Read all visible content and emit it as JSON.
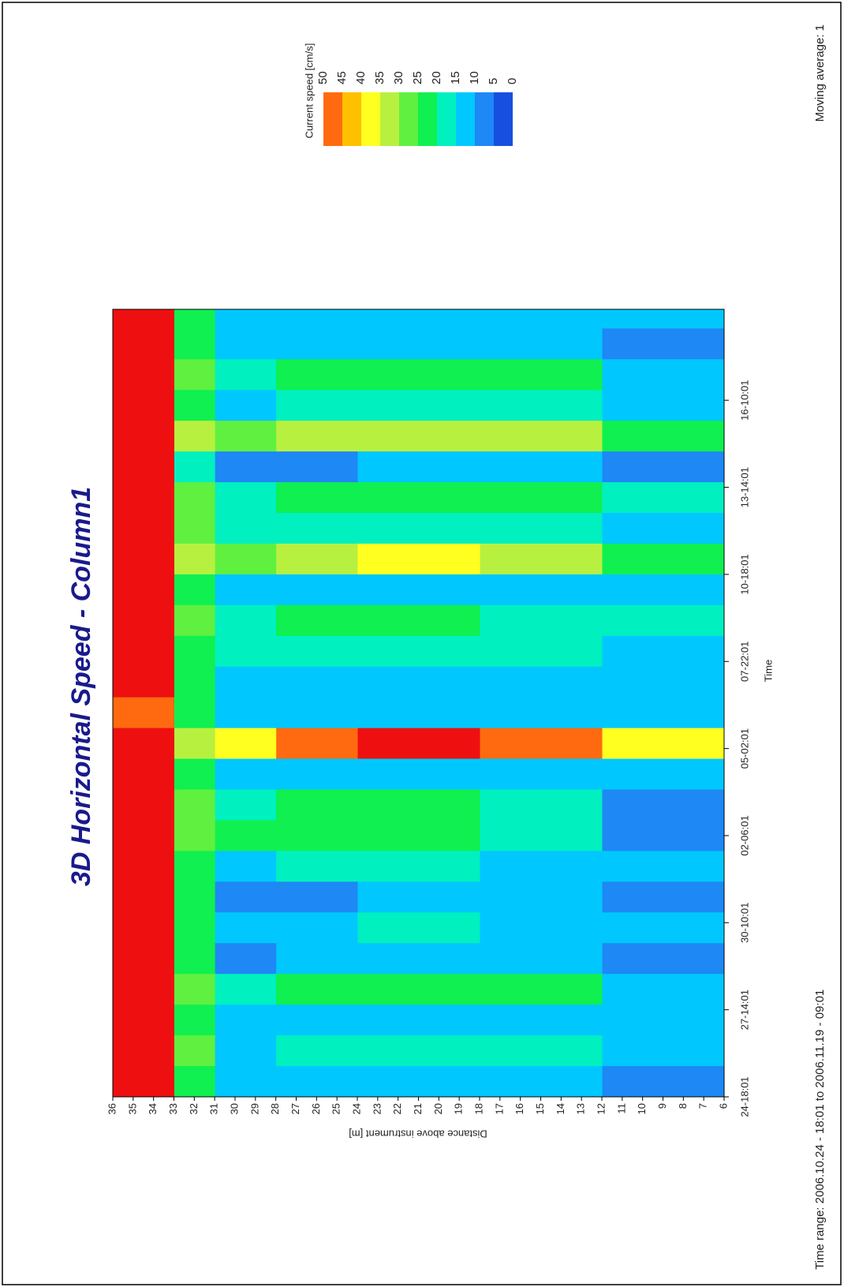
{
  "chart_data": {
    "type": "heatmap",
    "title": "3D Horizontal Speed - Column1",
    "xlabel": "Time",
    "ylabel": "Distance above instrument [m]",
    "footer_left": "Time range: 2006.10.24 - 18:01  to  2006.11.19 - 09:01",
    "footer_right": "Moving average: 1",
    "legend_title": "Current speed [cm/s]",
    "levels": [
      0,
      5,
      10,
      15,
      20,
      25,
      30,
      35,
      40,
      45,
      50
    ],
    "colors": [
      "#1750e0",
      "#1e88f5",
      "#00c8ff",
      "#00f0c0",
      "#10f050",
      "#60f040",
      "#b8f040",
      "#ffff20",
      "#ffc000",
      "#ff6a10"
    ],
    "over_color": "#ee1010",
    "title_color": "#1a1a8c",
    "x": [
      0,
      24,
      48,
      72,
      96,
      120,
      144,
      168,
      192,
      216,
      240,
      264,
      288,
      312,
      336,
      360,
      384,
      408,
      432,
      456,
      480,
      504,
      528,
      552,
      576,
      600,
      615
    ],
    "y": [
      6,
      12,
      18,
      24,
      28,
      31,
      33,
      36
    ],
    "z": [
      [
        8,
        14,
        10,
        14,
        8,
        10,
        8,
        12,
        7,
        9,
        10,
        35,
        12,
        10,
        14,
        16,
        10,
        20,
        12,
        16,
        8,
        20,
        12,
        14,
        8,
        12
      ],
      [
        12,
        17,
        12,
        20,
        11,
        14,
        10,
        14,
        18,
        16,
        12,
        45,
        14,
        12,
        18,
        18,
        12,
        30,
        16,
        20,
        10,
        30,
        16,
        20,
        10,
        14
      ],
      [
        12,
        18,
        13,
        24,
        12,
        16,
        12,
        16,
        22,
        20,
        12,
        52,
        14,
        14,
        18,
        20,
        12,
        36,
        18,
        22,
        10,
        34,
        16,
        22,
        10,
        14
      ],
      [
        10,
        16,
        12,
        22,
        10,
        14,
        8,
        17,
        22,
        20,
        12,
        48,
        14,
        12,
        18,
        20,
        12,
        34,
        18,
        22,
        8,
        34,
        16,
        22,
        10,
        14
      ],
      [
        10,
        14,
        10,
        16,
        9,
        10,
        5,
        14,
        20,
        18,
        12,
        38,
        14,
        12,
        16,
        18,
        12,
        26,
        16,
        18,
        8,
        28,
        14,
        18,
        10,
        12
      ],
      [
        22,
        25,
        22,
        26,
        20,
        24,
        20,
        24,
        28,
        28,
        22,
        34,
        24,
        24,
        24,
        26,
        22,
        30,
        26,
        28,
        18,
        30,
        24,
        26,
        22,
        22
      ],
      [
        55,
        56,
        54,
        58,
        55,
        56,
        52,
        52,
        55,
        52,
        50,
        54,
        48,
        52,
        50,
        55,
        52,
        56,
        56,
        58,
        52,
        58,
        56,
        55,
        52,
        54
      ]
    ],
    "xlim": [
      0,
      615
    ],
    "xticks": [
      {
        "value": 0,
        "label": "24-18:01"
      },
      {
        "value": 68,
        "label": "27-14:01"
      },
      {
        "value": 136,
        "label": "30-10:01"
      },
      {
        "value": 204,
        "label": "02-06:01"
      },
      {
        "value": 272,
        "label": "05-02:01"
      },
      {
        "value": 340,
        "label": "07-22:01"
      },
      {
        "value": 408,
        "label": "10-18:01"
      },
      {
        "value": 476,
        "label": "13-14:01"
      },
      {
        "value": 544,
        "label": "16-10:01"
      }
    ],
    "ylim": [
      6,
      36
    ],
    "yticks": [
      6,
      7,
      8,
      9,
      10,
      11,
      12,
      13,
      14,
      15,
      16,
      17,
      18,
      19,
      20,
      21,
      22,
      23,
      24,
      25,
      26,
      27,
      28,
      29,
      30,
      31,
      32,
      33,
      34,
      35,
      36
    ]
  }
}
